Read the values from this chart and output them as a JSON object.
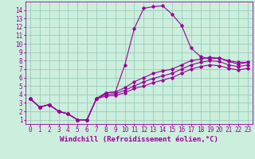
{
  "title": "",
  "xlabel": "Windchill (Refroidissement éolien,°C)",
  "bg_color": "#cceedd",
  "line_color": "#990099",
  "grid_color": "#99ccbb",
  "xlim": [
    -0.5,
    23.5
  ],
  "ylim": [
    0.5,
    15.0
  ],
  "xticks": [
    0,
    1,
    2,
    3,
    4,
    5,
    6,
    7,
    8,
    9,
    10,
    11,
    12,
    13,
    14,
    15,
    16,
    17,
    18,
    19,
    20,
    21,
    22,
    23
  ],
  "yticks": [
    1,
    2,
    3,
    4,
    5,
    6,
    7,
    8,
    9,
    10,
    11,
    12,
    13,
    14
  ],
  "curve1_x": [
    0,
    1,
    2,
    3,
    4,
    5,
    6,
    7,
    8,
    9,
    10,
    11,
    12,
    13,
    14,
    15,
    16,
    17,
    18,
    19,
    20,
    21,
    22,
    23
  ],
  "curve1_y": [
    3.5,
    2.5,
    2.8,
    2.0,
    1.7,
    1.0,
    1.0,
    3.5,
    4.2,
    4.3,
    7.5,
    11.8,
    14.2,
    14.4,
    14.5,
    13.5,
    12.2,
    9.5,
    8.5,
    8.2,
    8.3,
    8.0,
    7.8,
    7.8
  ],
  "curve2_x": [
    0,
    1,
    2,
    3,
    4,
    5,
    6,
    7,
    8,
    9,
    10,
    11,
    12,
    13,
    14,
    15,
    16,
    17,
    18,
    19,
    20,
    21,
    22,
    23
  ],
  "curve2_y": [
    3.5,
    2.5,
    2.8,
    2.0,
    1.7,
    1.0,
    1.0,
    3.5,
    4.2,
    4.3,
    4.8,
    5.5,
    6.0,
    6.5,
    6.8,
    7.0,
    7.5,
    8.0,
    8.2,
    8.4,
    8.3,
    7.9,
    7.6,
    7.8
  ],
  "curve3_x": [
    0,
    1,
    2,
    3,
    4,
    5,
    6,
    7,
    8,
    9,
    10,
    11,
    12,
    13,
    14,
    15,
    16,
    17,
    18,
    19,
    20,
    21,
    22,
    23
  ],
  "curve3_y": [
    3.5,
    2.5,
    2.8,
    2.0,
    1.7,
    1.0,
    1.0,
    3.5,
    4.0,
    4.1,
    4.5,
    5.0,
    5.5,
    5.9,
    6.2,
    6.5,
    7.0,
    7.5,
    7.8,
    8.0,
    7.9,
    7.5,
    7.3,
    7.5
  ],
  "curve4_x": [
    0,
    1,
    2,
    3,
    4,
    5,
    6,
    7,
    8,
    9,
    10,
    11,
    12,
    13,
    14,
    15,
    16,
    17,
    18,
    19,
    20,
    21,
    22,
    23
  ],
  "curve4_y": [
    3.5,
    2.5,
    2.8,
    2.0,
    1.7,
    1.0,
    1.0,
    3.5,
    3.8,
    3.9,
    4.2,
    4.7,
    5.0,
    5.4,
    5.7,
    6.0,
    6.5,
    7.0,
    7.3,
    7.5,
    7.4,
    7.1,
    6.9,
    7.1
  ],
  "tick_fontsize": 5.5,
  "label_fontsize": 6.5
}
